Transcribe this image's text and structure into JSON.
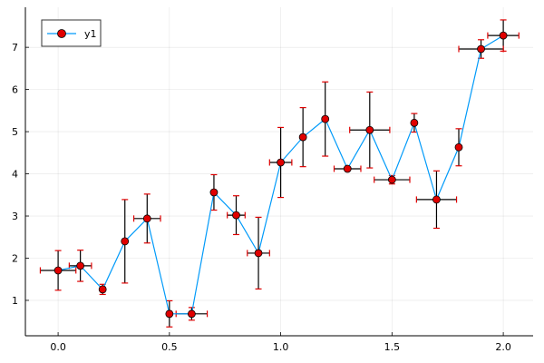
{
  "chart_data": {
    "type": "line",
    "title": "",
    "xlabel": "",
    "ylabel": "",
    "xlim": [
      -0.147,
      2.134
    ],
    "ylim": [
      0.16,
      7.95
    ],
    "grid": true,
    "legend_position": "top-left",
    "xticks": [
      "0.0",
      "0.5",
      "1.0",
      "1.5",
      "2.0"
    ],
    "xtick_values": [
      0,
      0.5,
      1,
      1.5,
      2
    ],
    "yticks": [
      "1",
      "2",
      "3",
      "4",
      "5",
      "6",
      "7"
    ],
    "ytick_values": [
      1,
      2,
      3,
      4,
      5,
      6,
      7
    ],
    "series": [
      {
        "name": "y1",
        "line_color": "#009af9",
        "marker_color": "#e00000",
        "x": [
          0,
          0.1,
          0.2,
          0.3,
          0.4,
          0.5,
          0.6,
          0.7,
          0.8,
          0.9,
          1.0,
          1.1,
          1.2,
          1.3,
          1.4,
          1.5,
          1.6,
          1.7,
          1.8,
          1.9,
          2.0
        ],
        "y": [
          1.71,
          1.82,
          1.26,
          2.4,
          2.94,
          0.68,
          0.68,
          3.56,
          3.02,
          2.12,
          4.27,
          4.87,
          5.3,
          4.12,
          5.04,
          3.86,
          5.21,
          3.39,
          4.63,
          6.96,
          7.28
        ],
        "yerr": [
          0.47,
          0.37,
          0.12,
          0.99,
          0.58,
          0.31,
          0.15,
          0.42,
          0.46,
          0.85,
          0.83,
          0.7,
          0.88,
          0,
          0.9,
          0.1,
          0.22,
          0.68,
          0.44,
          0.22,
          0.37
        ],
        "xerr": [
          0.08,
          0.05,
          0.01,
          0,
          0.06,
          0.01,
          0.07,
          0.01,
          0.04,
          0.05,
          0.05,
          0.01,
          0,
          0.06,
          0.09,
          0.08,
          0,
          0.09,
          0,
          0.1,
          0.07
        ]
      }
    ]
  }
}
